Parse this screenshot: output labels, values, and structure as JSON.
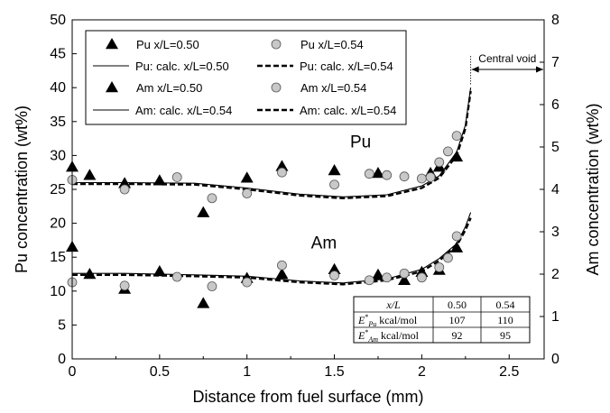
{
  "chart_data": {
    "type": "scatter",
    "xlabel": "Distance from fuel surface (mm)",
    "ylabel_left": "Pu concentration (wt%)",
    "ylabel_right": "Am concentration (wt%)",
    "xlim": [
      0,
      2.7
    ],
    "ylim_left": [
      0,
      50
    ],
    "ylim_right": [
      0,
      8
    ],
    "x_ticks": [
      "0",
      "0.5",
      "1",
      "1.5",
      "2",
      "2.5"
    ],
    "y_ticks_left": [
      "0",
      "5",
      "10",
      "15",
      "20",
      "25",
      "30",
      "35",
      "40",
      "45",
      "50"
    ],
    "y_ticks_right": [
      "0",
      "1",
      "2",
      "3",
      "4",
      "5",
      "6",
      "7",
      "8"
    ],
    "legend": [
      {
        "label": "Pu x/L=0.50",
        "kind": "triangle"
      },
      {
        "label": "Pu x/L=0.54",
        "kind": "circle"
      },
      {
        "label": "Pu: calc. x/L=0.50",
        "kind": "solid"
      },
      {
        "label": "Pu: calc. x/L=0.54",
        "kind": "dashed"
      },
      {
        "label": "Am x/L=0.50",
        "kind": "triangle"
      },
      {
        "label": "Am x/L=0.54",
        "kind": "circle"
      },
      {
        "label": "Am: calc. x/L=0.54",
        "kind": "solid"
      },
      {
        "label": "Am: calc. x/L=0.54",
        "kind": "dashed"
      }
    ],
    "annotations": {
      "pu_label": "Pu",
      "am_label": "Am",
      "central_void": "Central void",
      "void_start_x": 2.28
    },
    "series": [
      {
        "name": "Pu x/L=0.50",
        "marker": "triangle",
        "points": [
          [
            0,
            28.3
          ],
          [
            0.1,
            27.1
          ],
          [
            0.3,
            25.9
          ],
          [
            0.5,
            26.3
          ],
          [
            0.75,
            21.6
          ],
          [
            1.0,
            26.7
          ],
          [
            1.2,
            28.4
          ],
          [
            1.5,
            27.8
          ],
          [
            1.75,
            27.4
          ],
          [
            2.05,
            27.4
          ],
          [
            2.1,
            28.3
          ],
          [
            2.2,
            29.8
          ]
        ]
      },
      {
        "name": "Pu x/L=0.54",
        "marker": "circle",
        "points": [
          [
            0,
            26.4
          ],
          [
            0.3,
            25.0
          ],
          [
            0.6,
            26.8
          ],
          [
            0.8,
            23.7
          ],
          [
            1.0,
            24.4
          ],
          [
            1.2,
            27.5
          ],
          [
            1.5,
            25.7
          ],
          [
            1.7,
            27.3
          ],
          [
            1.8,
            27.1
          ],
          [
            1.9,
            26.9
          ],
          [
            2.0,
            26.6
          ],
          [
            2.05,
            26.8
          ],
          [
            2.1,
            29.0
          ],
          [
            2.15,
            30.6
          ],
          [
            2.2,
            32.9
          ]
        ]
      },
      {
        "name": "Pu: calc. x/L=0.50",
        "line": "solid",
        "points": [
          [
            0,
            26.0
          ],
          [
            0.3,
            26.0
          ],
          [
            0.7,
            25.9
          ],
          [
            1.0,
            25.2
          ],
          [
            1.3,
            24.3
          ],
          [
            1.55,
            23.9
          ],
          [
            1.8,
            24.2
          ],
          [
            2.0,
            25.5
          ],
          [
            2.1,
            27.0
          ],
          [
            2.2,
            30.5
          ],
          [
            2.25,
            34.5
          ],
          [
            2.28,
            40.0
          ]
        ]
      },
      {
        "name": "Pu: calc. x/L=0.54",
        "line": "dashed",
        "points": [
          [
            0,
            25.8
          ],
          [
            0.3,
            25.8
          ],
          [
            0.7,
            25.7
          ],
          [
            1.0,
            25.0
          ],
          [
            1.3,
            24.1
          ],
          [
            1.55,
            23.7
          ],
          [
            1.8,
            24.0
          ],
          [
            2.0,
            25.2
          ],
          [
            2.1,
            26.7
          ],
          [
            2.2,
            30.0
          ],
          [
            2.25,
            34.0
          ],
          [
            2.28,
            39.5
          ]
        ]
      },
      {
        "name": "Am x/L=0.50",
        "marker": "triangle",
        "points": [
          [
            0,
            16.5
          ],
          [
            0.1,
            12.5
          ],
          [
            0.3,
            10.3
          ],
          [
            0.5,
            12.9
          ],
          [
            0.75,
            8.2
          ],
          [
            1.0,
            11.9
          ],
          [
            1.2,
            12.5
          ],
          [
            1.5,
            13.2
          ],
          [
            1.75,
            12.4
          ],
          [
            1.9,
            11.6
          ],
          [
            2.0,
            12.8
          ],
          [
            2.1,
            13.1
          ],
          [
            2.2,
            16.4
          ]
        ]
      },
      {
        "name": "Am x/L=0.54",
        "marker": "circle",
        "points": [
          [
            0,
            11.3
          ],
          [
            0.3,
            10.8
          ],
          [
            0.6,
            12.1
          ],
          [
            0.8,
            10.7
          ],
          [
            1.0,
            11.3
          ],
          [
            1.2,
            13.8
          ],
          [
            1.5,
            12.3
          ],
          [
            1.7,
            11.6
          ],
          [
            1.8,
            12.0
          ],
          [
            1.9,
            12.6
          ],
          [
            2.0,
            12.0
          ],
          [
            2.1,
            13.5
          ],
          [
            2.15,
            14.9
          ],
          [
            2.2,
            18.1
          ]
        ]
      },
      {
        "name": "Am: calc. x/L=0.54",
        "line": "solid",
        "points": [
          [
            0,
            12.6
          ],
          [
            0.3,
            12.6
          ],
          [
            0.7,
            12.4
          ],
          [
            1.0,
            12.2
          ],
          [
            1.3,
            11.5
          ],
          [
            1.55,
            11.2
          ],
          [
            1.8,
            11.8
          ],
          [
            2.0,
            13.2
          ],
          [
            2.1,
            14.8
          ],
          [
            2.2,
            17.0
          ],
          [
            2.25,
            19.5
          ],
          [
            2.28,
            21.6
          ]
        ]
      },
      {
        "name": "Am: calc. x/L=0.54",
        "line": "dashed",
        "points": [
          [
            0,
            12.4
          ],
          [
            0.3,
            12.4
          ],
          [
            0.7,
            12.2
          ],
          [
            1.0,
            12.0
          ],
          [
            1.3,
            11.3
          ],
          [
            1.55,
            11.0
          ],
          [
            1.8,
            11.6
          ],
          [
            2.0,
            12.9
          ],
          [
            2.1,
            14.5
          ],
          [
            2.2,
            16.7
          ],
          [
            2.25,
            19.0
          ],
          [
            2.28,
            20.8
          ]
        ]
      }
    ],
    "table": {
      "header": [
        "x/L",
        "0.50",
        "0.54"
      ],
      "rows": [
        {
          "symbol": "E",
          "sup": "*",
          "sub": "Pu",
          "unit": "kcal/mol",
          "v1": "107",
          "v2": "110"
        },
        {
          "symbol": "E",
          "sup": "*",
          "sub": "Am",
          "unit": "kcal/mol",
          "v1": "92",
          "v2": "95"
        }
      ]
    }
  }
}
